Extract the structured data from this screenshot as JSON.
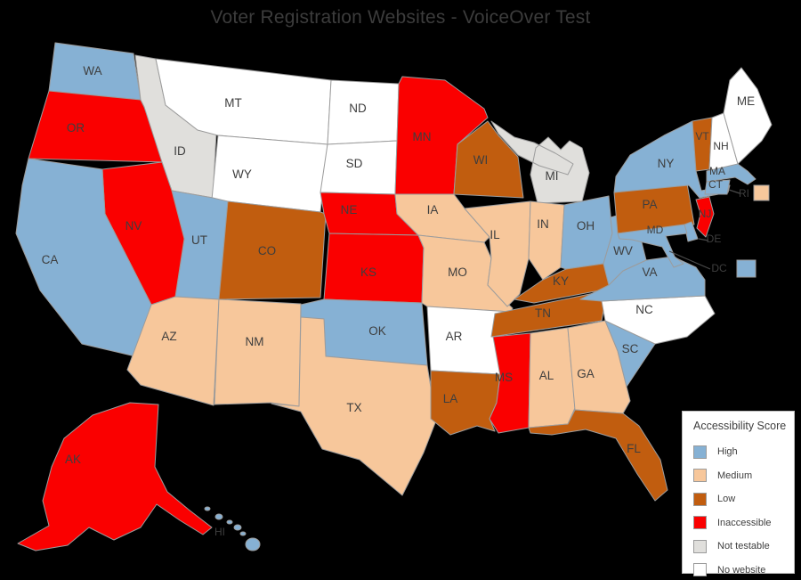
{
  "title": "Voter Registration Websites - VoiceOver Test",
  "legend": {
    "title": "Accessibility Score",
    "items": [
      {
        "id": "high",
        "label": "High",
        "color": "#86B1D4"
      },
      {
        "id": "medium",
        "label": "Medium",
        "color": "#F7C79B"
      },
      {
        "id": "low",
        "label": "Low",
        "color": "#C15D0F"
      },
      {
        "id": "inaccessible",
        "label": "Inaccessible",
        "color": "#FA0000"
      },
      {
        "id": "not-testable",
        "label": "Not testable",
        "color": "#E0DFDC"
      },
      {
        "id": "no-website",
        "label": "No website",
        "color": "#FFFFFF"
      }
    ]
  },
  "colors": {
    "background": "#000000",
    "state_border": "#9C9C9C",
    "label_text": "#3E3E3E",
    "title_text": "#3C3C3C",
    "legend_border": "#BDBDBD",
    "legend_bg": "#FFFFFF",
    "callout_line": "#4A4A4A"
  },
  "chart_data": {
    "type": "choropleth",
    "title": "Voter Registration Websites - VoiceOver Test",
    "legend_title": "Accessibility Score",
    "legend_position": "bottom-right",
    "categories": [
      "High",
      "Medium",
      "Low",
      "Inaccessible",
      "Not testable",
      "No website"
    ],
    "category_colors": {
      "High": "#86B1D4",
      "Medium": "#F7C79B",
      "Low": "#C15D0F",
      "Inaccessible": "#FA0000",
      "Not testable": "#E0DFDC",
      "No website": "#FFFFFF"
    },
    "states": {
      "WA": "High",
      "OR": "Inaccessible",
      "CA": "High",
      "NV": "Inaccessible",
      "ID": "Not testable",
      "MT": "No website",
      "WY": "No website",
      "UT": "High",
      "AZ": "Medium",
      "NM": "Medium",
      "CO": "Low",
      "ND": "No website",
      "SD": "No website",
      "NE": "Inaccessible",
      "KS": "Inaccessible",
      "OK": "High",
      "TX": "Medium",
      "MN": "Inaccessible",
      "IA": "Medium",
      "MO": "Medium",
      "AR": "No website",
      "LA": "Low",
      "WI": "Low",
      "IL": "Medium",
      "IN": "Medium",
      "MI": "Not testable",
      "OH": "High",
      "KY": "Low",
      "TN": "Low",
      "MS": "Inaccessible",
      "AL": "Medium",
      "GA": "Medium",
      "FL": "Low",
      "SC": "High",
      "NC": "No website",
      "VA": "High",
      "WV": "High",
      "PA": "Low",
      "NY": "High",
      "VT": "Low",
      "NH": "No website",
      "ME": "No website",
      "MA": "High",
      "CT": "High",
      "RI": "Medium",
      "NJ": "Inaccessible",
      "DE": "High",
      "MD": "High",
      "DC": "High",
      "AK": "Inaccessible",
      "HI": "High"
    },
    "callout_states": [
      "RI",
      "DE",
      "DC"
    ]
  }
}
